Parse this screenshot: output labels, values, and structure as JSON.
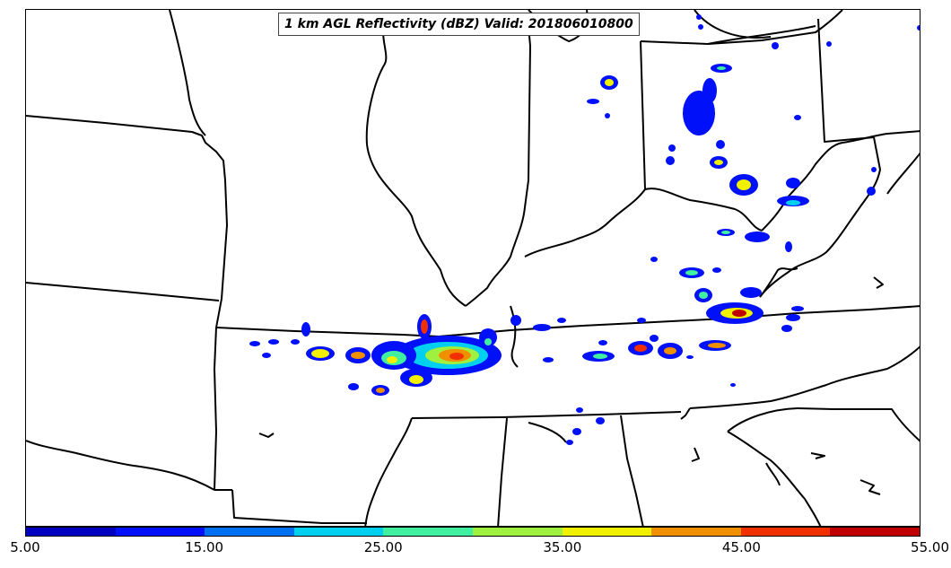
{
  "title": "1 km AGL Reflectivity (dBZ) Valid: 201806010800",
  "colorbar": {
    "colors": [
      "#0000c0",
      "#0010f8",
      "#0070f0",
      "#00d0f0",
      "#40f0a0",
      "#a0f040",
      "#f0f000",
      "#f09000",
      "#f03000",
      "#c00000"
    ],
    "tick_labels": [
      "5.00",
      "15.00",
      "25.00",
      "35.00",
      "45.00",
      "55.00"
    ],
    "range": [
      5,
      55
    ],
    "interval": 5
  },
  "map": {
    "region": "Central and eastern United States",
    "boundaries": "state and coastline outlines"
  }
}
